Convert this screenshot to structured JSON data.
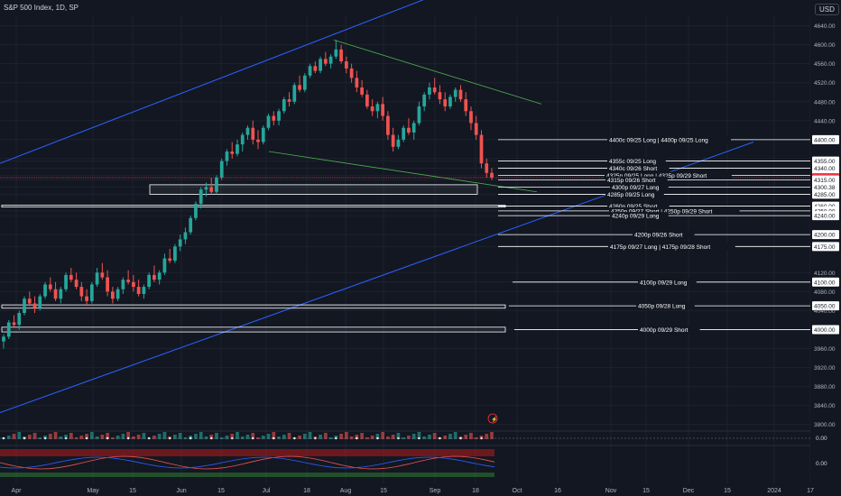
{
  "header": {
    "symbol_title": "S&P 500 Index, 1D, SP",
    "currency": "USD"
  },
  "colors": {
    "background": "#131722",
    "grid": "#1e222d",
    "up": "#26a69a",
    "down": "#ef5350",
    "channel": "#2962ff",
    "wedge": "#4caf50",
    "level": "#ffffff",
    "current": "#f23645"
  },
  "chart_data": {
    "type": "candlestick",
    "y_axis": {
      "ticks": [
        "4640.00",
        "4600.00",
        "4560.00",
        "4520.00",
        "4480.00",
        "4440.00",
        "4400.00",
        "4360.00",
        "4355.00",
        "4340.00",
        "4325.00",
        "4320.05",
        "4315.00",
        "4300.38",
        "4285.00",
        "4260.00",
        "4250.00",
        "4240.00",
        "4200.00",
        "4175.00",
        "4120.00",
        "4100.00",
        "4080.00",
        "4050.00",
        "4040.00",
        "4000.00",
        "3960.00",
        "3920.00",
        "3880.00",
        "3840.00",
        "3800.00"
      ],
      "current_price": "4320.05",
      "highlighted_levels": [
        "4400.00",
        "4355.00",
        "4340.00",
        "4325.00",
        "4315.00",
        "4300.38",
        "4285.00",
        "4260.00",
        "4250.00",
        "4240.00",
        "4200.00",
        "4175.00",
        "4100.00",
        "4050.00",
        "4000.00"
      ]
    },
    "x_axis": {
      "ticks": [
        "Apr",
        "May",
        "15",
        "Jun",
        "15",
        "Jul",
        "18",
        "Aug",
        "15",
        "Sep",
        "18",
        "Oct",
        "16",
        "Nov",
        "15",
        "Dec",
        "15",
        "2024",
        "17"
      ]
    },
    "options_levels": [
      {
        "label": "4400c 09/25 Long | 4400p 09/25 Long",
        "price": 4400
      },
      {
        "label": "4355c 09/25 Long",
        "price": 4355
      },
      {
        "label": "4340c 09/26 Short",
        "price": 4340
      },
      {
        "label": "4325p 09/25 Long | 4325p 09/29 Short",
        "price": 4325
      },
      {
        "label": "4315p 09/26 Short",
        "price": 4315
      },
      {
        "label": "4300p 09/27 Long",
        "price": 4300
      },
      {
        "label": "4285p 09/25 Long",
        "price": 4285
      },
      {
        "label": "4260p 09/25 Short",
        "price": 4260
      },
      {
        "label": "4250p 09/27 Short | 4250p 09/29 Short",
        "price": 4250
      },
      {
        "label": "4240p 09/29 Long",
        "price": 4240
      },
      {
        "label": "4200p 09/26 Short",
        "price": 4200
      },
      {
        "label": "4175p 09/27 Long | 4175p 09/28 Short",
        "price": 4175
      },
      {
        "label": "4100p 09/29 Long",
        "price": 4100
      },
      {
        "label": "4050p 09/28 Long",
        "price": 4050
      },
      {
        "label": "4000p 09/29 Short",
        "price": 4000
      }
    ],
    "indicator_panes": [
      {
        "value_label": "0.00"
      },
      {
        "value_label": "0.00"
      }
    ],
    "candles": [
      [
        3975,
        3990,
        3960,
        3985
      ],
      [
        3985,
        4020,
        3980,
        4015
      ],
      [
        4015,
        4030,
        4005,
        4010
      ],
      [
        4010,
        4040,
        4000,
        4035
      ],
      [
        4035,
        4070,
        4030,
        4065
      ],
      [
        4065,
        4080,
        4050,
        4055
      ],
      [
        4055,
        4070,
        4035,
        4045
      ],
      [
        4045,
        4075,
        4040,
        4070
      ],
      [
        4070,
        4100,
        4065,
        4095
      ],
      [
        4095,
        4110,
        4080,
        4085
      ],
      [
        4085,
        4100,
        4060,
        4065
      ],
      [
        4065,
        4090,
        4055,
        4085
      ],
      [
        4085,
        4120,
        4080,
        4115
      ],
      [
        4115,
        4130,
        4100,
        4105
      ],
      [
        4105,
        4120,
        4085,
        4090
      ],
      [
        4090,
        4100,
        4060,
        4070
      ],
      [
        4070,
        4085,
        4050,
        4060
      ],
      [
        4060,
        4100,
        4055,
        4095
      ],
      [
        4095,
        4130,
        4090,
        4120
      ],
      [
        4120,
        4140,
        4105,
        4110
      ],
      [
        4110,
        4125,
        4070,
        4080
      ],
      [
        4080,
        4090,
        4055,
        4065
      ],
      [
        4065,
        4090,
        4060,
        4085
      ],
      [
        4085,
        4110,
        4075,
        4105
      ],
      [
        4105,
        4125,
        4095,
        4100
      ],
      [
        4100,
        4115,
        4080,
        4090
      ],
      [
        4090,
        4105,
        4070,
        4075
      ],
      [
        4075,
        4095,
        4065,
        4090
      ],
      [
        4090,
        4120,
        4085,
        4115
      ],
      [
        4115,
        4135,
        4100,
        4105
      ],
      [
        4105,
        4125,
        4095,
        4120
      ],
      [
        4120,
        4160,
        4115,
        4150
      ],
      [
        4150,
        4170,
        4140,
        4145
      ],
      [
        4145,
        4180,
        4140,
        4175
      ],
      [
        4175,
        4200,
        4165,
        4190
      ],
      [
        4190,
        4215,
        4180,
        4205
      ],
      [
        4205,
        4240,
        4200,
        4235
      ],
      [
        4235,
        4270,
        4230,
        4265
      ],
      [
        4265,
        4300,
        4255,
        4295
      ],
      [
        4295,
        4310,
        4280,
        4300
      ],
      [
        4300,
        4320,
        4285,
        4290
      ],
      [
        4290,
        4325,
        4285,
        4320
      ],
      [
        4320,
        4360,
        4315,
        4355
      ],
      [
        4355,
        4380,
        4345,
        4375
      ],
      [
        4375,
        4395,
        4360,
        4370
      ],
      [
        4370,
        4400,
        4365,
        4390
      ],
      [
        4390,
        4415,
        4375,
        4410
      ],
      [
        4410,
        4430,
        4400,
        4425
      ],
      [
        4425,
        4440,
        4390,
        4400
      ],
      [
        4400,
        4420,
        4380,
        4395
      ],
      [
        4395,
        4430,
        4390,
        4425
      ],
      [
        4425,
        4455,
        4420,
        4450
      ],
      [
        4450,
        4460,
        4430,
        4440
      ],
      [
        4440,
        4465,
        4430,
        4460
      ],
      [
        4460,
        4490,
        4455,
        4485
      ],
      [
        4485,
        4500,
        4470,
        4480
      ],
      [
        4480,
        4520,
        4475,
        4515
      ],
      [
        4515,
        4535,
        4500,
        4505
      ],
      [
        4505,
        4540,
        4500,
        4535
      ],
      [
        4535,
        4560,
        4530,
        4555
      ],
      [
        4555,
        4565,
        4540,
        4545
      ],
      [
        4545,
        4575,
        4540,
        4570
      ],
      [
        4570,
        4585,
        4555,
        4560
      ],
      [
        4560,
        4580,
        4550,
        4575
      ],
      [
        4575,
        4610,
        4570,
        4590
      ],
      [
        4590,
        4600,
        4560,
        4565
      ],
      [
        4565,
        4575,
        4540,
        4550
      ],
      [
        4550,
        4560,
        4520,
        4530
      ],
      [
        4530,
        4545,
        4500,
        4510
      ],
      [
        4510,
        4525,
        4490,
        4495
      ],
      [
        4495,
        4505,
        4465,
        4470
      ],
      [
        4470,
        4485,
        4450,
        4460
      ],
      [
        4460,
        4480,
        4445,
        4475
      ],
      [
        4475,
        4490,
        4440,
        4450
      ],
      [
        4450,
        4460,
        4400,
        4410
      ],
      [
        4410,
        4425,
        4375,
        4385
      ],
      [
        4385,
        4410,
        4380,
        4400
      ],
      [
        4400,
        4430,
        4395,
        4425
      ],
      [
        4425,
        4445,
        4410,
        4415
      ],
      [
        4415,
        4440,
        4400,
        4435
      ],
      [
        4435,
        4480,
        4430,
        4470
      ],
      [
        4470,
        4500,
        4460,
        4495
      ],
      [
        4495,
        4520,
        4485,
        4510
      ],
      [
        4510,
        4530,
        4495,
        4500
      ],
      [
        4500,
        4515,
        4475,
        4485
      ],
      [
        4485,
        4500,
        4460,
        4470
      ],
      [
        4470,
        4495,
        4465,
        4490
      ],
      [
        4490,
        4510,
        4480,
        4505
      ],
      [
        4505,
        4515,
        4480,
        4485
      ],
      [
        4485,
        4500,
        4450,
        4460
      ],
      [
        4460,
        4470,
        4420,
        4435
      ],
      [
        4435,
        4450,
        4400,
        4410
      ],
      [
        4410,
        4420,
        4340,
        4350
      ],
      [
        4350,
        4360,
        4320,
        4330
      ],
      [
        4330,
        4340,
        4315,
        4320
      ]
    ]
  }
}
